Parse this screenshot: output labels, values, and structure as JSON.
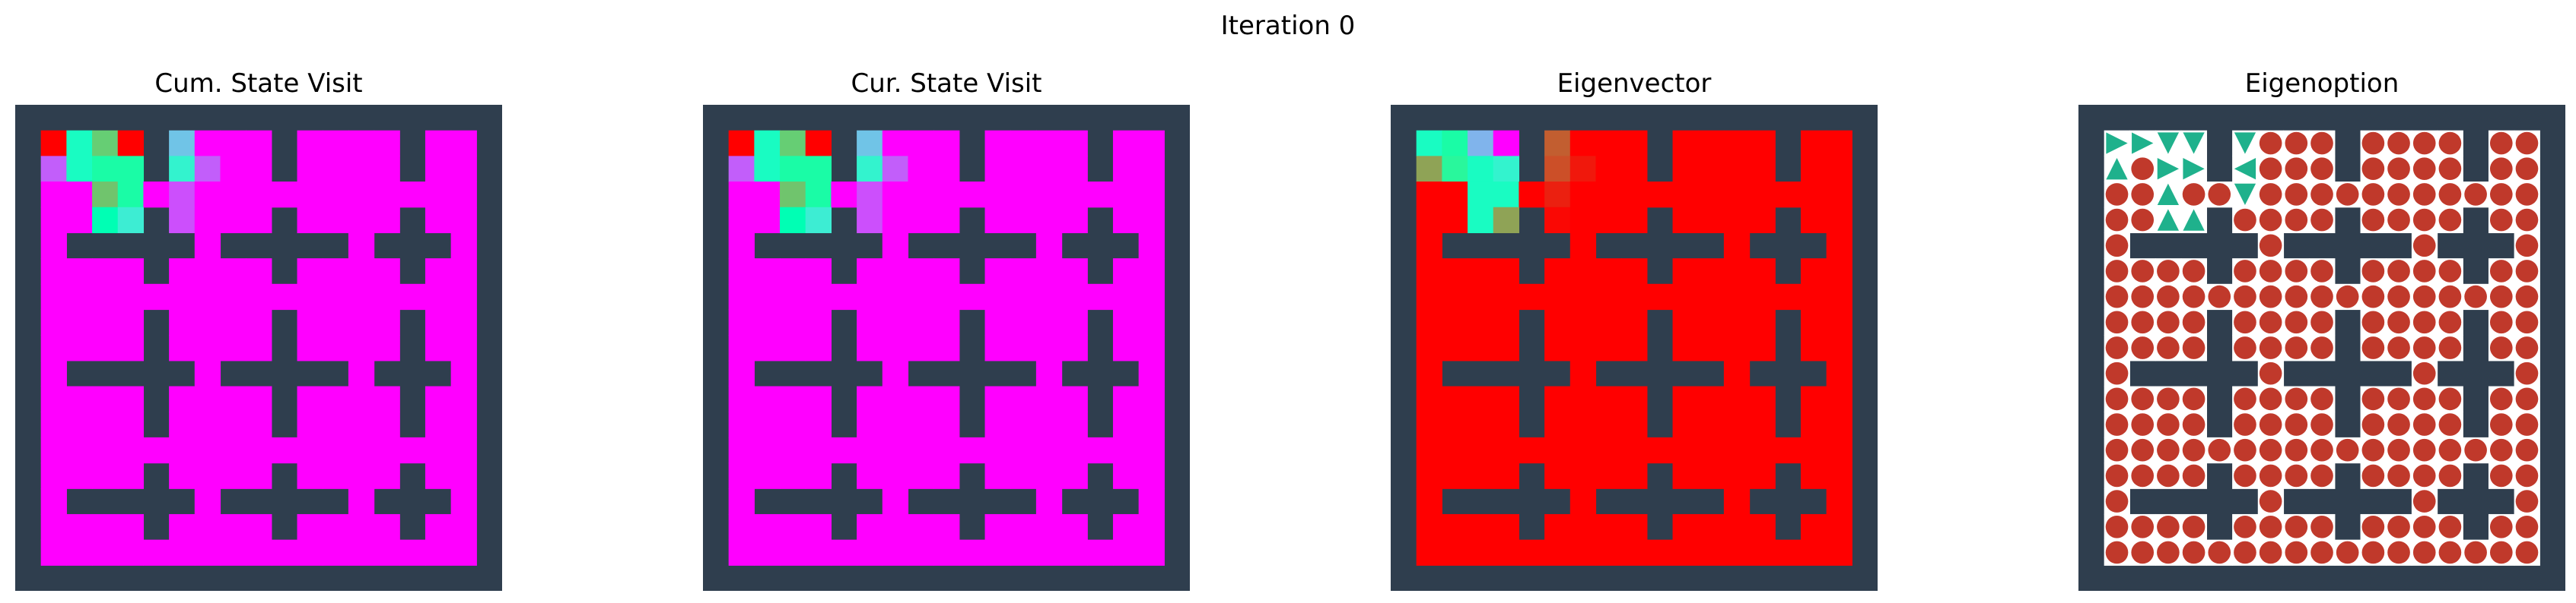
{
  "figure": {
    "suptitle": "Iteration 0"
  },
  "panels": [
    {
      "id": "cum",
      "title": "Cum. State Visit",
      "type": "heatmap"
    },
    {
      "id": "cur",
      "title": "Cur. State Visit",
      "type": "heatmap"
    },
    {
      "id": "eig",
      "title": "Eigenvector",
      "type": "heatmap"
    },
    {
      "id": "opt",
      "title": "Eigenoption",
      "type": "policy"
    }
  ],
  "colors": {
    "wall": "#2f3e4e",
    "floor": "#ffffff",
    "low_value": "#8000ff",
    "high_value": "#ff0000",
    "policy_arrow": "#1fb18c",
    "terminate_dot": "#c0392b"
  },
  "chart_data": [
    {
      "type": "heatmap",
      "title": "Cum. State Visit",
      "grid_size": [
        19,
        19
      ],
      "colormap": "rainbow",
      "background_value": 0.0,
      "cells": [
        {
          "r": 1,
          "c": 1,
          "v": 1.0
        },
        {
          "r": 1,
          "c": 2,
          "v": 0.45
        },
        {
          "r": 1,
          "c": 3,
          "v": 0.7
        },
        {
          "r": 1,
          "c": 4,
          "v": 1.0
        },
        {
          "r": 1,
          "c": 6,
          "v": 0.28
        },
        {
          "r": 2,
          "c": 1,
          "v": 0.12
        },
        {
          "r": 2,
          "c": 2,
          "v": 0.45
        },
        {
          "r": 2,
          "c": 3,
          "v": 0.55
        },
        {
          "r": 2,
          "c": 4,
          "v": 0.55
        },
        {
          "r": 2,
          "c": 5,
          "v": 0.55
        },
        {
          "r": 2,
          "c": 6,
          "v": 0.4
        },
        {
          "r": 2,
          "c": 7,
          "v": 0.12
        },
        {
          "r": 3,
          "c": 3,
          "v": 0.72
        },
        {
          "r": 3,
          "c": 4,
          "v": 0.55
        },
        {
          "r": 3,
          "c": 6,
          "v": 0.1
        },
        {
          "r": 4,
          "c": 3,
          "v": 0.5
        },
        {
          "r": 4,
          "c": 4,
          "v": 0.38
        },
        {
          "r": 4,
          "c": 6,
          "v": 0.1
        }
      ]
    },
    {
      "type": "heatmap",
      "title": "Cur. State Visit",
      "grid_size": [
        19,
        19
      ],
      "colormap": "rainbow",
      "background_value": 0.0,
      "cells": [
        {
          "r": 1,
          "c": 1,
          "v": 1.0
        },
        {
          "r": 1,
          "c": 2,
          "v": 0.45
        },
        {
          "r": 1,
          "c": 3,
          "v": 0.7
        },
        {
          "r": 1,
          "c": 4,
          "v": 1.0
        },
        {
          "r": 1,
          "c": 6,
          "v": 0.28
        },
        {
          "r": 2,
          "c": 1,
          "v": 0.12
        },
        {
          "r": 2,
          "c": 2,
          "v": 0.45
        },
        {
          "r": 2,
          "c": 3,
          "v": 0.55
        },
        {
          "r": 2,
          "c": 4,
          "v": 0.55
        },
        {
          "r": 2,
          "c": 5,
          "v": 0.55
        },
        {
          "r": 2,
          "c": 6,
          "v": 0.4
        },
        {
          "r": 2,
          "c": 7,
          "v": 0.12
        },
        {
          "r": 3,
          "c": 3,
          "v": 0.72
        },
        {
          "r": 3,
          "c": 4,
          "v": 0.55
        },
        {
          "r": 3,
          "c": 6,
          "v": 0.1
        },
        {
          "r": 4,
          "c": 3,
          "v": 0.5
        },
        {
          "r": 4,
          "c": 4,
          "v": 0.38
        },
        {
          "r": 4,
          "c": 6,
          "v": 0.1
        }
      ]
    },
    {
      "type": "heatmap",
      "title": "Eigenvector",
      "grid_size": [
        19,
        19
      ],
      "colormap": "rainbow",
      "background_value": 1.0,
      "cells": [
        {
          "r": 1,
          "c": 1,
          "v": 0.45
        },
        {
          "r": 1,
          "c": 2,
          "v": 0.55
        },
        {
          "r": 1,
          "c": 3,
          "v": 0.25
        },
        {
          "r": 1,
          "c": 4,
          "v": 0.0
        },
        {
          "r": 1,
          "c": 6,
          "v": 0.88
        },
        {
          "r": 2,
          "c": 1,
          "v": 0.78
        },
        {
          "r": 2,
          "c": 2,
          "v": 0.58
        },
        {
          "r": 2,
          "c": 3,
          "v": 0.45
        },
        {
          "r": 2,
          "c": 4,
          "v": 0.4
        },
        {
          "r": 2,
          "c": 5,
          "v": 0.45
        },
        {
          "r": 2,
          "c": 6,
          "v": 0.9
        },
        {
          "r": 2,
          "c": 7,
          "v": 0.97
        },
        {
          "r": 3,
          "c": 3,
          "v": 0.45
        },
        {
          "r": 3,
          "c": 4,
          "v": 0.45
        },
        {
          "r": 3,
          "c": 6,
          "v": 0.96
        },
        {
          "r": 4,
          "c": 3,
          "v": 0.45
        },
        {
          "r": 4,
          "c": 4,
          "v": 0.78
        },
        {
          "r": 4,
          "c": 6,
          "v": 0.99
        }
      ]
    },
    {
      "type": "policy",
      "title": "Eigenoption",
      "grid_size": [
        19,
        19
      ],
      "default_action": "terminate",
      "actions": [
        {
          "r": 1,
          "c": 1,
          "a": "right"
        },
        {
          "r": 1,
          "c": 2,
          "a": "right"
        },
        {
          "r": 1,
          "c": 3,
          "a": "down"
        },
        {
          "r": 1,
          "c": 4,
          "a": "down"
        },
        {
          "r": 1,
          "c": 6,
          "a": "down"
        },
        {
          "r": 2,
          "c": 1,
          "a": "up"
        },
        {
          "r": 2,
          "c": 3,
          "a": "right"
        },
        {
          "r": 2,
          "c": 4,
          "a": "right"
        },
        {
          "r": 2,
          "c": 5,
          "a": "right"
        },
        {
          "r": 2,
          "c": 6,
          "a": "left"
        },
        {
          "r": 3,
          "c": 3,
          "a": "up"
        },
        {
          "r": 3,
          "c": 6,
          "a": "down"
        },
        {
          "r": 4,
          "c": 3,
          "a": "up"
        },
        {
          "r": 4,
          "c": 4,
          "a": "up"
        }
      ]
    }
  ]
}
